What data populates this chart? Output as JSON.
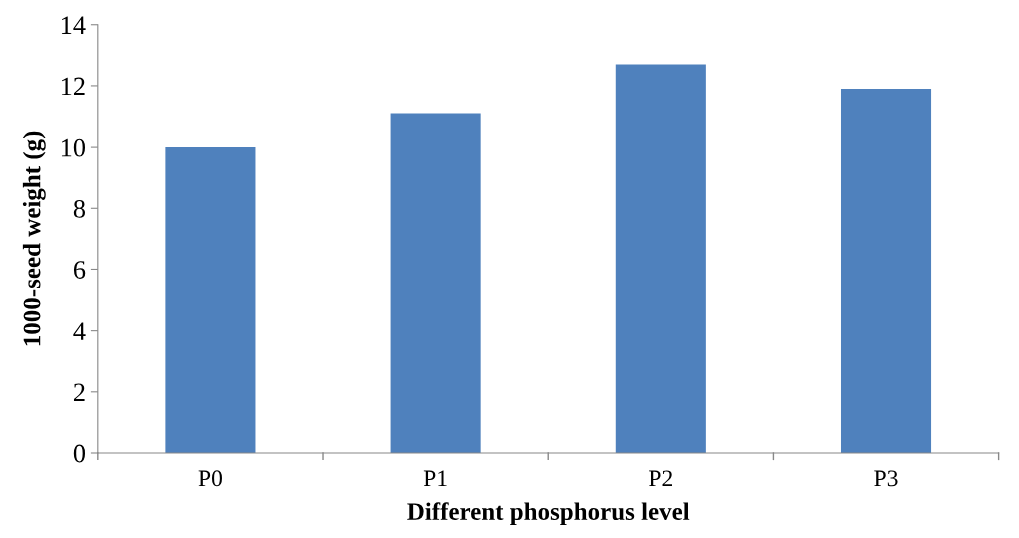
{
  "chart_data": {
    "type": "bar",
    "xlabel": "Different phosphorus level",
    "ylabel": "1000-seed weight (g)",
    "categories": [
      "P0",
      "P1",
      "P2",
      "P3"
    ],
    "values": [
      10.0,
      11.1,
      12.7,
      11.9
    ],
    "color": "#4f81bd",
    "ylim": [
      0,
      14
    ],
    "yticks": [
      0,
      2,
      4,
      6,
      8,
      10,
      12,
      14
    ],
    "grid": false
  }
}
